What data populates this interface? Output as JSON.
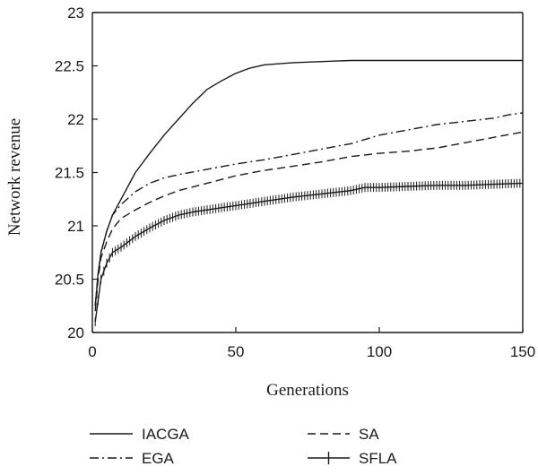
{
  "chart_data": {
    "type": "line",
    "title": "",
    "xlabel": "Generations",
    "ylabel": "Network revenue",
    "xlim": [
      0,
      150
    ],
    "ylim": [
      20,
      23
    ],
    "xticks": [
      "0",
      "50",
      "100",
      "150"
    ],
    "yticks": [
      "20",
      "20.5",
      "21",
      "21.5",
      "22",
      "22.5",
      "23"
    ],
    "grid": false,
    "legend_position": "bottom",
    "colors": {
      "line": "#1a1a1a",
      "axis": "#1a1a1a"
    },
    "series": [
      {
        "name": "IACGA",
        "style": "solid",
        "x": [
          1,
          2,
          3,
          5,
          7,
          10,
          15,
          20,
          25,
          30,
          35,
          40,
          45,
          50,
          55,
          60,
          70,
          80,
          90,
          100,
          110,
          120,
          130,
          140,
          150
        ],
        "y": [
          20.25,
          20.55,
          20.75,
          20.95,
          21.1,
          21.25,
          21.5,
          21.68,
          21.85,
          22.0,
          22.15,
          22.28,
          22.36,
          22.43,
          22.48,
          22.51,
          22.53,
          22.54,
          22.55,
          22.55,
          22.55,
          22.55,
          22.55,
          22.55,
          22.55
        ]
      },
      {
        "name": "EGA",
        "style": "dashdot",
        "x": [
          1,
          2,
          3,
          5,
          7,
          10,
          15,
          20,
          25,
          30,
          40,
          50,
          60,
          70,
          80,
          90,
          100,
          110,
          120,
          130,
          140,
          145,
          150
        ],
        "y": [
          20.25,
          20.55,
          20.75,
          20.95,
          21.1,
          21.2,
          21.32,
          21.4,
          21.45,
          21.48,
          21.53,
          21.58,
          21.62,
          21.67,
          21.72,
          21.77,
          21.85,
          21.9,
          21.95,
          21.98,
          22.01,
          22.04,
          22.06
        ]
      },
      {
        "name": "SA",
        "style": "dashed",
        "x": [
          1,
          2,
          3,
          5,
          7,
          10,
          15,
          20,
          25,
          30,
          40,
          50,
          60,
          70,
          80,
          90,
          100,
          110,
          120,
          130,
          140,
          150
        ],
        "y": [
          20.2,
          20.5,
          20.7,
          20.85,
          20.97,
          21.07,
          21.15,
          21.22,
          21.28,
          21.33,
          21.4,
          21.47,
          21.52,
          21.56,
          21.6,
          21.65,
          21.68,
          21.7,
          21.73,
          21.78,
          21.83,
          21.88
        ]
      },
      {
        "name": "SFLA",
        "style": "solid-plus",
        "x": [
          1,
          2,
          3,
          5,
          7,
          10,
          15,
          20,
          25,
          30,
          35,
          40,
          50,
          60,
          70,
          80,
          90,
          95,
          100,
          110,
          120,
          130,
          140,
          150
        ],
        "y": [
          20.1,
          20.3,
          20.5,
          20.65,
          20.75,
          20.8,
          20.9,
          20.98,
          21.05,
          21.1,
          21.13,
          21.15,
          21.19,
          21.23,
          21.27,
          21.3,
          21.33,
          21.36,
          21.36,
          21.37,
          21.38,
          21.38,
          21.39,
          21.4
        ]
      }
    ]
  }
}
